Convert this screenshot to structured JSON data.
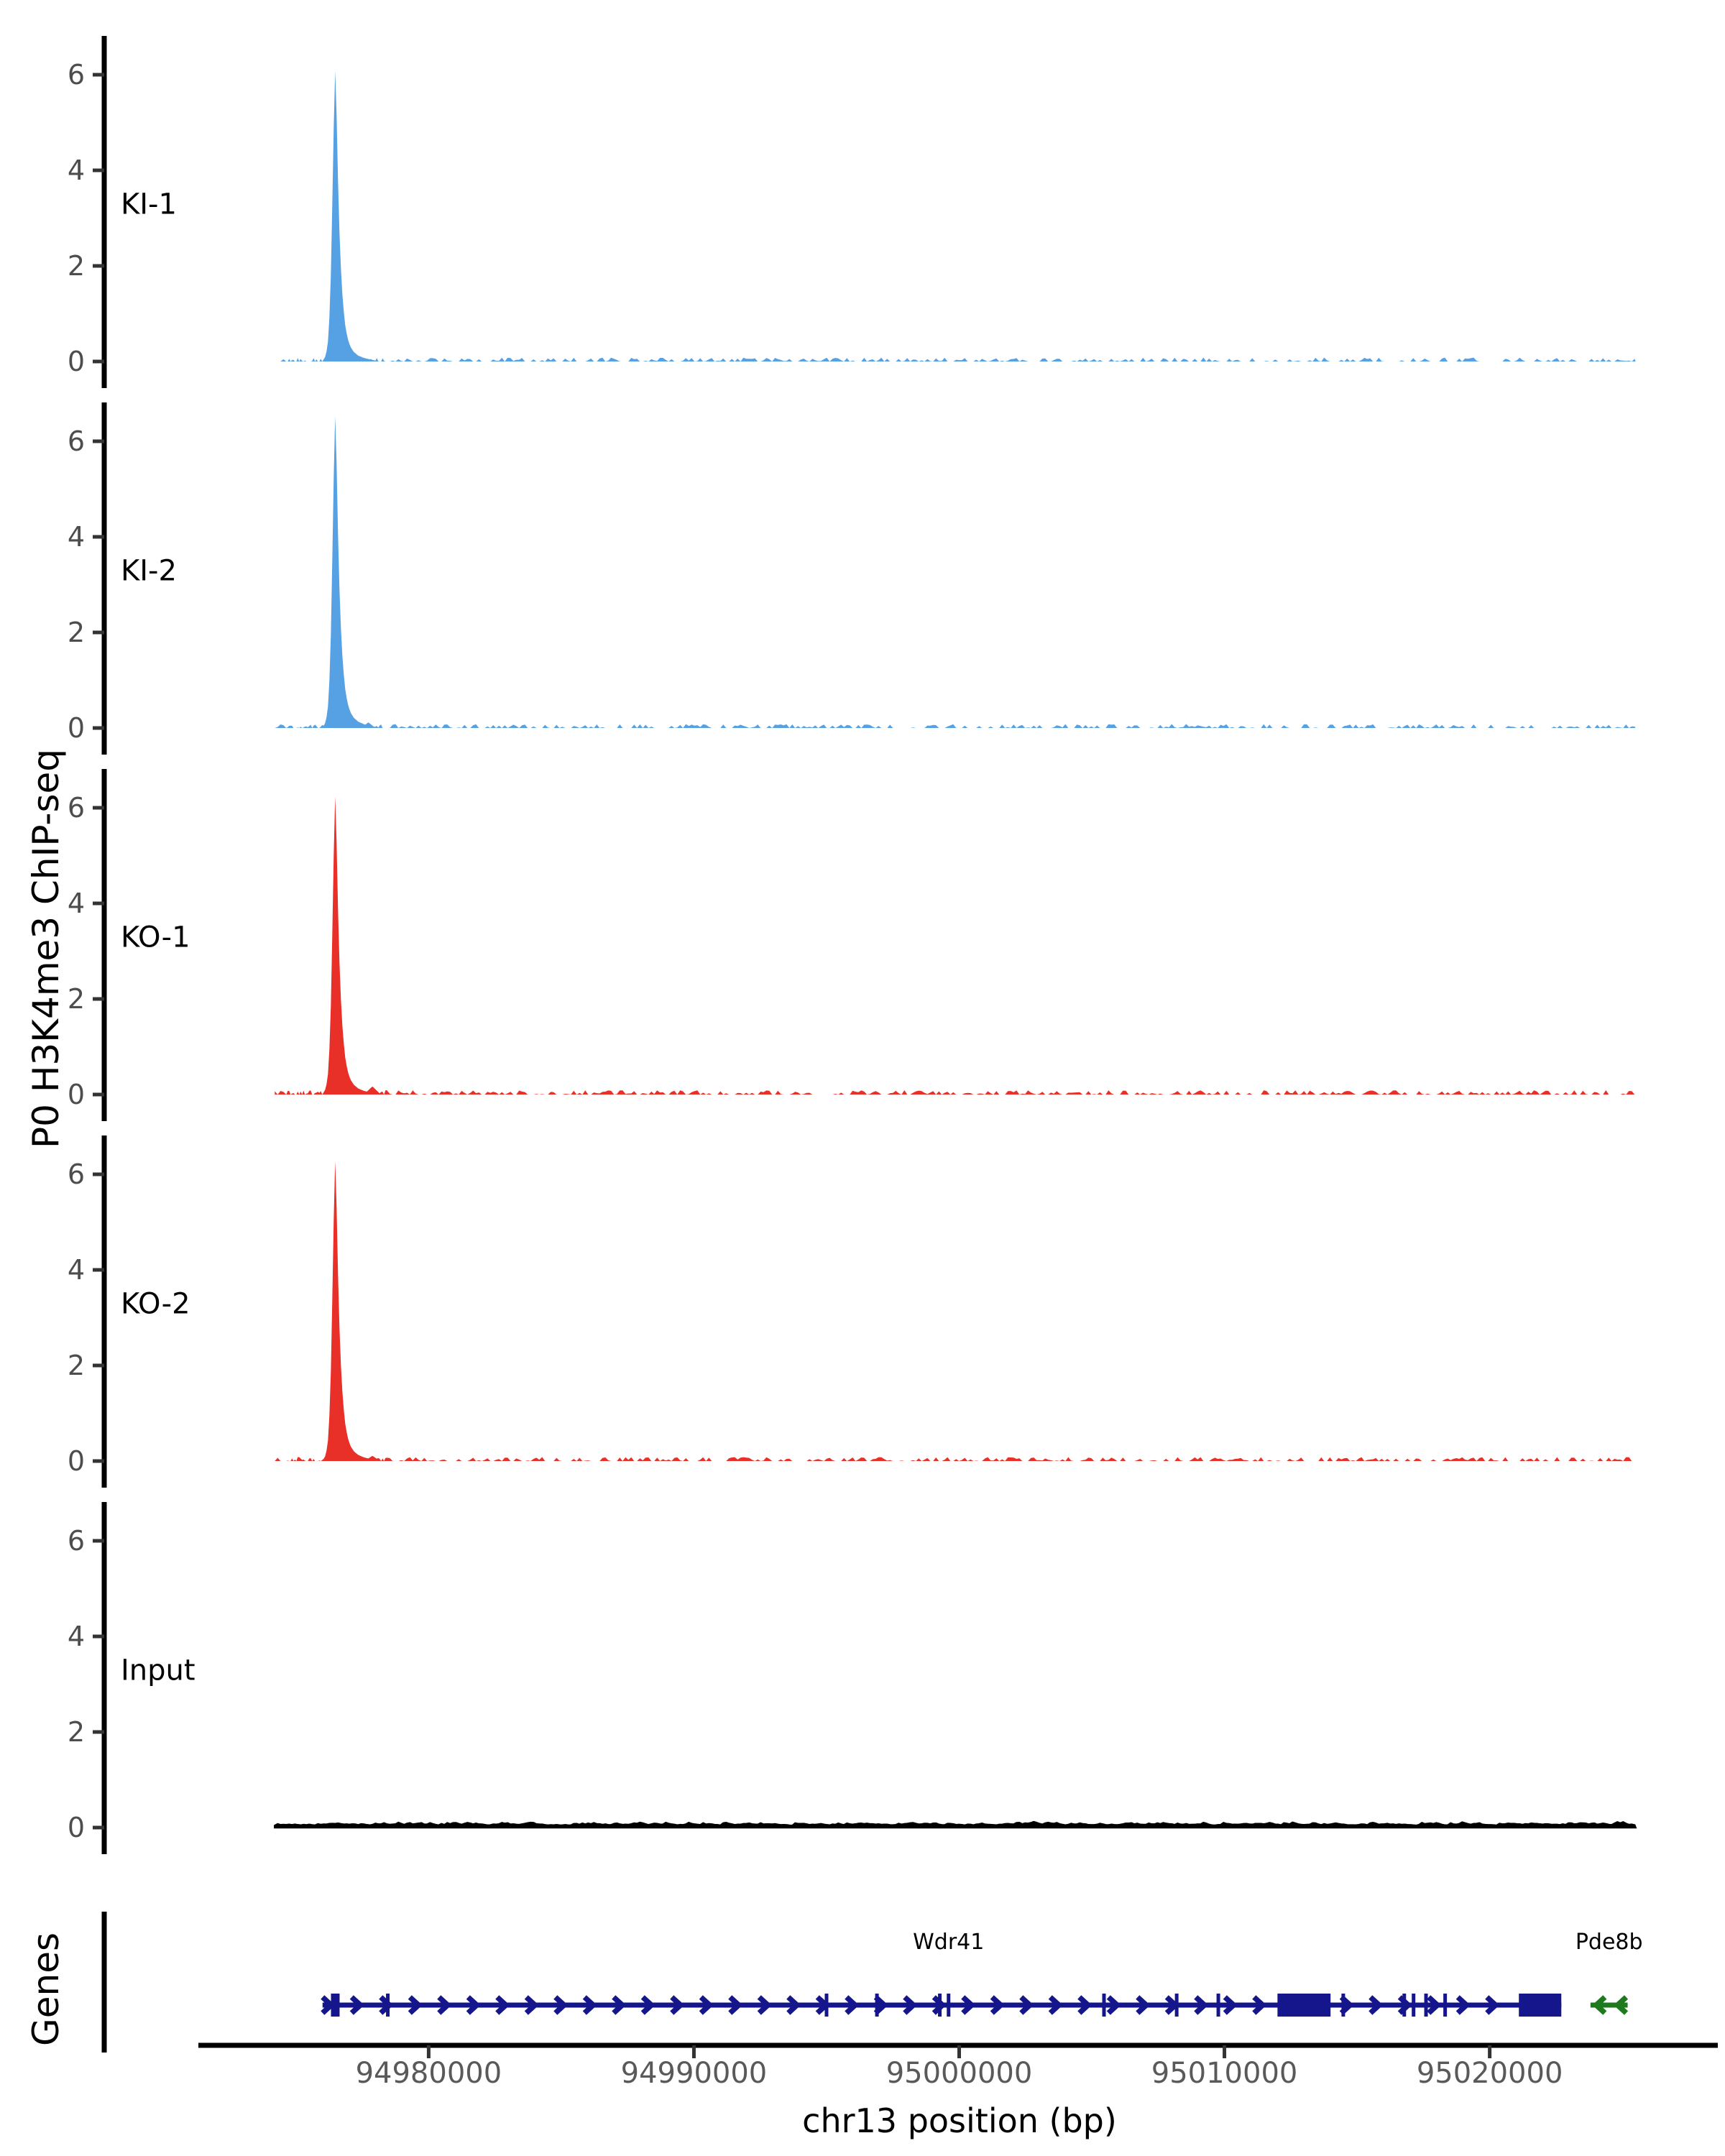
{
  "chart_data": {
    "type": "area",
    "title": "",
    "region": {
      "chrom": "chr13",
      "xmin": 94971400,
      "xmax": 95028600,
      "signal_start": 94974200,
      "signal_end": 95025500
    },
    "x_axis": {
      "label": "chr13 position (bp)",
      "ticks": [
        94980000,
        94990000,
        95000000,
        95010000,
        95020000
      ]
    },
    "y_axis": {
      "label": "P0 H3K4me3 ChIP-seq",
      "ticks": [
        0,
        2,
        4,
        6
      ],
      "ylim": [
        0,
        6.9
      ]
    },
    "tracks": [
      {
        "name": "KI-1",
        "color": "#56A1E4",
        "peak": {
          "center": 94976480,
          "height": 6.15,
          "shoulder": {
            "offset_bp": 330,
            "halfwidth_bp": 110,
            "height": 0.5
          }
        },
        "noise": {
          "level": 0.05,
          "density": 0.45,
          "seed": 11,
          "continuous": false
        }
      },
      {
        "name": "KI-2",
        "color": "#56A1E4",
        "peak": {
          "center": 94976480,
          "height": 6.6,
          "shoulder": {
            "offset_bp": 1250,
            "halfwidth_bp": 260,
            "height": 0.12
          }
        },
        "noise": {
          "level": 0.05,
          "density": 0.5,
          "seed": 22,
          "continuous": false
        }
      },
      {
        "name": "KO-1",
        "color": "#E93028",
        "peak": {
          "center": 94976480,
          "height": 6.3,
          "shoulder": {
            "offset_bp": 1400,
            "halfwidth_bp": 320,
            "height": 0.17
          }
        },
        "noise": {
          "level": 0.055,
          "density": 0.6,
          "seed": 33,
          "continuous": false
        }
      },
      {
        "name": "KO-2",
        "color": "#E93028",
        "peak": {
          "center": 94976480,
          "height": 6.35,
          "shoulder": {
            "offset_bp": 1400,
            "halfwidth_bp": 300,
            "height": 0.11
          }
        },
        "noise": {
          "level": 0.05,
          "density": 0.5,
          "seed": 44,
          "continuous": false
        }
      },
      {
        "name": "Input",
        "color": "#000000",
        "peak": null,
        "noise": {
          "level": 0.075,
          "density": 1.0,
          "seed": 55,
          "continuous": true
        }
      }
    ],
    "genes_panel_label": "Genes",
    "genes": [
      {
        "name": "Wdr41",
        "strand": "+",
        "color": "#16168C",
        "start": 94976000,
        "end": 95022700,
        "tss_bar": 94976480,
        "exon_ticks": [
          94978460,
          94995000,
          94996900,
          94999270,
          94999600,
          95005460,
          95008200,
          95009770,
          95014480,
          95016780,
          95017130,
          95017600,
          95018320
        ],
        "exon_boxes": [
          [
            95012000,
            95014000
          ],
          [
            95021100,
            95022700
          ]
        ],
        "label_center": 94999600
      },
      {
        "name": "Pde8b",
        "strand": "-",
        "color": "#1F7A1F",
        "start": 95023800,
        "end": 95025200,
        "tss_bar": null,
        "exon_ticks": [],
        "exon_boxes": [],
        "label_center": 95024500
      }
    ],
    "colors": {
      "axis": "#000000",
      "tick_mark": "#333333",
      "y_tick_label": "#4d4d4d",
      "x_tick_label": "#595959",
      "track_label": "#000000"
    }
  }
}
